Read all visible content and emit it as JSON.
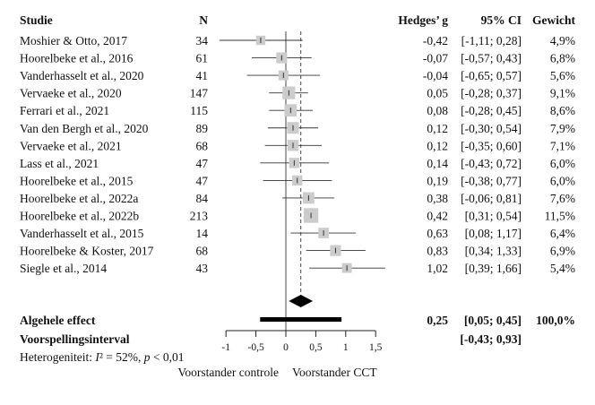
{
  "chart_data": {
    "type": "forest",
    "headers": {
      "study": "Studie",
      "n": "N",
      "g": "Hedges’ g",
      "ci": "95% CI",
      "weight": "Gewicht"
    },
    "studies": [
      {
        "name": "Moshier & Otto, 2017",
        "n": "34",
        "g": -0.42,
        "lo": -1.11,
        "hi": 0.28,
        "g_label": "-0,42",
        "ci_label": "[-1,11; 0,28]",
        "weight": 4.9,
        "weight_label": "4,9%"
      },
      {
        "name": "Hoorelbeke et al., 2016",
        "n": "61",
        "g": -0.07,
        "lo": -0.57,
        "hi": 0.43,
        "g_label": "-0,07",
        "ci_label": "[-0,57; 0,43]",
        "weight": 6.8,
        "weight_label": "6,8%"
      },
      {
        "name": "Vanderhasselt et al., 2020",
        "n": "41",
        "g": -0.04,
        "lo": -0.65,
        "hi": 0.57,
        "g_label": "-0,04",
        "ci_label": "[-0,65; 0,57]",
        "weight": 5.6,
        "weight_label": "5,6%"
      },
      {
        "name": "Vervaeke et al., 2020",
        "n": "147",
        "g": 0.05,
        "lo": -0.28,
        "hi": 0.37,
        "g_label": "0,05",
        "ci_label": "[-0,28; 0,37]",
        "weight": 9.1,
        "weight_label": "9,1%"
      },
      {
        "name": "Ferrari et al., 2021",
        "n": "115",
        "g": 0.08,
        "lo": -0.28,
        "hi": 0.45,
        "g_label": "0,08",
        "ci_label": "[-0,28; 0,45]",
        "weight": 8.6,
        "weight_label": "8,6%"
      },
      {
        "name": "Van den Bergh et al., 2020",
        "n": "89",
        "g": 0.12,
        "lo": -0.3,
        "hi": 0.54,
        "g_label": "0,12",
        "ci_label": "[-0,30; 0,54]",
        "weight": 7.9,
        "weight_label": "7,9%"
      },
      {
        "name": "Vervaeke et al., 2021",
        "n": "68",
        "g": 0.12,
        "lo": -0.35,
        "hi": 0.6,
        "g_label": "0,12",
        "ci_label": "[-0,35; 0,60]",
        "weight": 7.1,
        "weight_label": "7,1%"
      },
      {
        "name": "Lass et al., 2021",
        "n": "47",
        "g": 0.14,
        "lo": -0.43,
        "hi": 0.72,
        "g_label": "0,14",
        "ci_label": "[-0,43; 0,72]",
        "weight": 6.0,
        "weight_label": "6,0%"
      },
      {
        "name": "Hoorelbeke et al., 2015",
        "n": "47",
        "g": 0.19,
        "lo": -0.38,
        "hi": 0.77,
        "g_label": "0,19",
        "ci_label": "[-0,38; 0,77]",
        "weight": 6.0,
        "weight_label": "6,0%"
      },
      {
        "name": "Hoorelbeke et al., 2022a",
        "n": "84",
        "g": 0.38,
        "lo": -0.06,
        "hi": 0.81,
        "g_label": "0,38",
        "ci_label": "[-0,06; 0,81]",
        "weight": 7.6,
        "weight_label": "7,6%"
      },
      {
        "name": "Hoorelbeke et al., 2022b",
        "n": "213",
        "g": 0.42,
        "lo": 0.31,
        "hi": 0.54,
        "g_label": "0,42",
        "ci_label": "[0,31; 0,54]",
        "weight": 11.5,
        "weight_label": "11,5%"
      },
      {
        "name": "Vanderhasselt et al., 2015",
        "n": "14",
        "g": 0.63,
        "lo": 0.08,
        "hi": 1.17,
        "g_label": "0,63",
        "ci_label": "[0,08; 1,17]",
        "weight": 6.4,
        "weight_label": "6,4%"
      },
      {
        "name": "Hoorelbeke & Koster, 2017",
        "n": "68",
        "g": 0.83,
        "lo": 0.34,
        "hi": 1.33,
        "g_label": "0,83",
        "ci_label": "[0,34; 1,33]",
        "weight": 6.9,
        "weight_label": "6,9%"
      },
      {
        "name": "Siegle et al., 2014",
        "n": "43",
        "g": 1.02,
        "lo": 0.39,
        "hi": 1.66,
        "g_label": "1,02",
        "ci_label": "[0,39; 1,66]",
        "weight": 5.4,
        "weight_label": "5,4%"
      }
    ],
    "overall": {
      "label": "Algehele effect",
      "g": 0.25,
      "lo": 0.05,
      "hi": 0.45,
      "g_label": "0,25",
      "ci_label": "[0,05; 0,45]",
      "weight_label": "100,0%"
    },
    "prediction": {
      "label": "Voorspellingsinterval",
      "lo": -0.43,
      "hi": 0.93,
      "ci_label": "[-0,43; 0,93]"
    },
    "heterogeneity": {
      "prefix": "Heterogeniteit: ",
      "i": "I",
      "mid": "² = 52%, ",
      "p": "p",
      "suffix": " < 0,01"
    },
    "xlim": [
      -1,
      1.5
    ],
    "xticks": [
      -1,
      -0.5,
      0,
      0.5,
      1,
      1.5
    ],
    "xtick_labels": [
      "-1",
      "-0,5",
      "0",
      "0,5",
      "1",
      "1,5"
    ],
    "xlabel_left": "Voorstander controle",
    "xlabel_right": "Voorstander CCT",
    "colors": {
      "square": "#cccccc",
      "line": "#333333",
      "diamond": "#000000"
    }
  }
}
